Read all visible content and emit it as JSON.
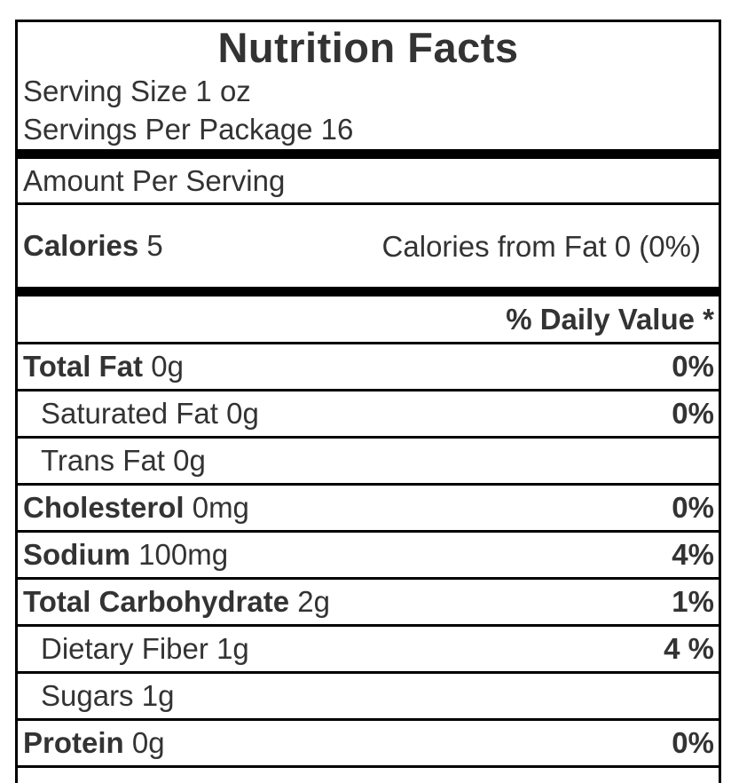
{
  "label": {
    "title": "Nutrition Facts",
    "serving_size": "Serving Size 1 oz",
    "servings_per_package": "Servings Per Package 16",
    "amount_per_serving": "Amount Per Serving",
    "calories": {
      "name": "Calories",
      "value": "5",
      "from_fat": "Calories from Fat 0 (0%)"
    },
    "daily_value_header": "% Daily Value *",
    "rows": [
      {
        "name": "Total Fat",
        "amount": "0g",
        "dv": "0%"
      },
      {
        "name": "Saturated Fat",
        "amount": "0g",
        "dv": "0%"
      },
      {
        "name": "Trans Fat",
        "amount": "0g",
        "dv": ""
      },
      {
        "name": "Cholesterol",
        "amount": "0mg",
        "dv": "0%"
      },
      {
        "name": "Sodium",
        "amount": "100mg",
        "dv": "4%"
      },
      {
        "name": "Total Carbohydrate",
        "amount": "2g",
        "dv": "1%"
      },
      {
        "name": "Dietary Fiber",
        "amount": "1g",
        "dv": "4 %"
      },
      {
        "name": "Sugars",
        "amount": "1g",
        "dv": ""
      },
      {
        "name": "Protein",
        "amount": "0g",
        "dv": "0%"
      }
    ],
    "colors": {
      "text": "#333333",
      "border": "#000000",
      "background": "#ffffff"
    }
  }
}
